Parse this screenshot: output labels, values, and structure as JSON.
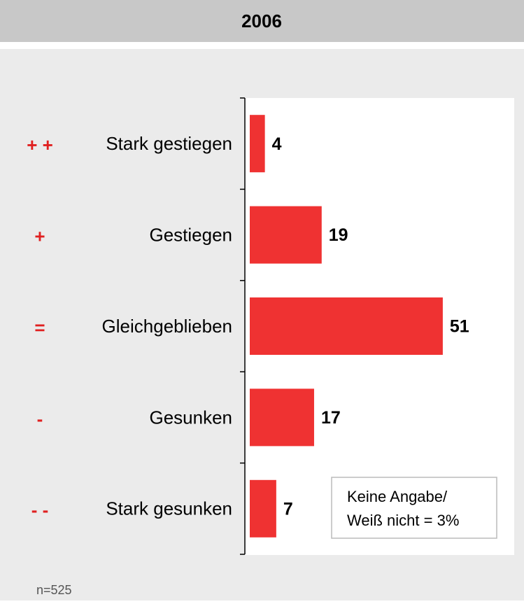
{
  "chart_data": {
    "type": "bar",
    "orientation": "horizontal",
    "title": "2006",
    "symbols": [
      "+ +",
      "+",
      "=",
      "-",
      "- -"
    ],
    "categories": [
      "Stark gestiegen",
      "Gestiegen",
      "Gleichgeblieben",
      "Gesunken",
      "Stark gesunken"
    ],
    "values": [
      4,
      19,
      51,
      17,
      7
    ],
    "color": "#ef3232",
    "annotation": [
      "Keine Angabe/",
      "Weiß nicht = 3%"
    ],
    "footnote": "n=525"
  }
}
